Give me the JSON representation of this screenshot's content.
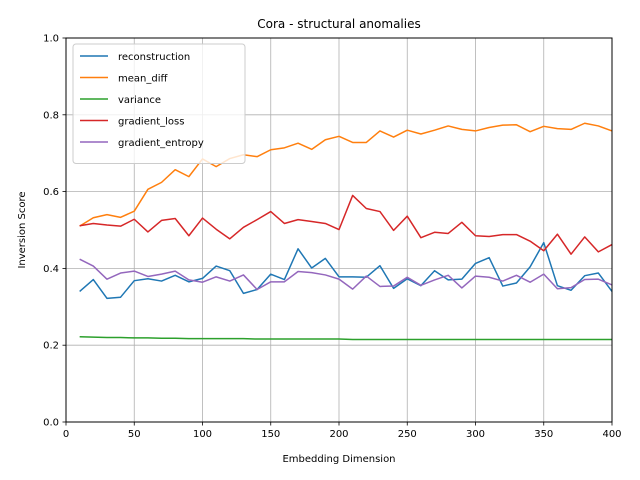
{
  "chart_data": {
    "type": "line",
    "title": "Cora - structural anomalies",
    "xlabel": "Embedding Dimension",
    "ylabel": "Inversion Score",
    "xlim": [
      0,
      400
    ],
    "ylim": [
      0,
      1.0
    ],
    "xticks": [
      0,
      50,
      100,
      150,
      200,
      250,
      300,
      350,
      400
    ],
    "yticks": [
      0.0,
      0.2,
      0.4,
      0.6,
      0.8,
      1.0
    ],
    "xtick_labels": [
      "0",
      "50",
      "100",
      "150",
      "200",
      "250",
      "300",
      "350",
      "400"
    ],
    "ytick_labels": [
      "0.0",
      "0.2",
      "0.4",
      "0.6",
      "0.8",
      "1.0"
    ],
    "grid": true,
    "legend_position": "top-left",
    "x": [
      10,
      20,
      30,
      40,
      50,
      60,
      70,
      80,
      90,
      100,
      110,
      120,
      130,
      140,
      150,
      160,
      170,
      180,
      190,
      200,
      210,
      220,
      230,
      240,
      250,
      260,
      270,
      280,
      290,
      300,
      310,
      320,
      330,
      340,
      350,
      360,
      370,
      380,
      390,
      400
    ],
    "series": [
      {
        "name": "reconstruction",
        "color": "#1f77b4",
        "values": [
          0.34,
          0.371,
          0.322,
          0.325,
          0.368,
          0.373,
          0.367,
          0.382,
          0.365,
          0.374,
          0.406,
          0.394,
          0.335,
          0.345,
          0.385,
          0.371,
          0.451,
          0.401,
          0.426,
          0.378,
          0.378,
          0.377,
          0.407,
          0.348,
          0.373,
          0.355,
          0.394,
          0.37,
          0.372,
          0.413,
          0.428,
          0.354,
          0.362,
          0.404,
          0.467,
          0.355,
          0.343,
          0.381,
          0.388,
          0.34
        ]
      },
      {
        "name": "mean_diff",
        "color": "#ff7f0e",
        "values": [
          0.51,
          0.532,
          0.54,
          0.533,
          0.549,
          0.606,
          0.624,
          0.657,
          0.639,
          0.685,
          0.665,
          0.686,
          0.696,
          0.691,
          0.709,
          0.714,
          0.726,
          0.71,
          0.735,
          0.744,
          0.728,
          0.728,
          0.758,
          0.742,
          0.76,
          0.75,
          0.76,
          0.771,
          0.762,
          0.758,
          0.767,
          0.773,
          0.774,
          0.756,
          0.77,
          0.764,
          0.762,
          0.778,
          0.771,
          0.758
        ]
      },
      {
        "name": "variance",
        "color": "#2ca02c",
        "values": [
          0.222,
          0.221,
          0.22,
          0.22,
          0.219,
          0.219,
          0.218,
          0.218,
          0.217,
          0.217,
          0.217,
          0.217,
          0.217,
          0.216,
          0.216,
          0.216,
          0.216,
          0.216,
          0.216,
          0.216,
          0.215,
          0.215,
          0.215,
          0.215,
          0.215,
          0.215,
          0.215,
          0.215,
          0.215,
          0.215,
          0.215,
          0.215,
          0.215,
          0.215,
          0.215,
          0.215,
          0.215,
          0.215,
          0.215,
          0.215
        ]
      },
      {
        "name": "gradient_loss",
        "color": "#d62728",
        "values": [
          0.511,
          0.517,
          0.513,
          0.51,
          0.528,
          0.495,
          0.525,
          0.53,
          0.485,
          0.531,
          0.502,
          0.477,
          0.507,
          0.527,
          0.548,
          0.517,
          0.527,
          0.522,
          0.517,
          0.501,
          0.59,
          0.556,
          0.548,
          0.499,
          0.536,
          0.48,
          0.494,
          0.491,
          0.52,
          0.485,
          0.483,
          0.488,
          0.488,
          0.471,
          0.446,
          0.489,
          0.437,
          0.482,
          0.443,
          0.462
        ]
      },
      {
        "name": "gradient_entropy",
        "color": "#9467bd",
        "values": [
          0.424,
          0.406,
          0.372,
          0.388,
          0.393,
          0.379,
          0.385,
          0.393,
          0.37,
          0.364,
          0.378,
          0.367,
          0.383,
          0.345,
          0.365,
          0.365,
          0.392,
          0.389,
          0.383,
          0.372,
          0.346,
          0.38,
          0.353,
          0.354,
          0.377,
          0.356,
          0.37,
          0.382,
          0.349,
          0.38,
          0.377,
          0.367,
          0.382,
          0.364,
          0.385,
          0.347,
          0.35,
          0.371,
          0.372,
          0.357
        ]
      }
    ]
  }
}
